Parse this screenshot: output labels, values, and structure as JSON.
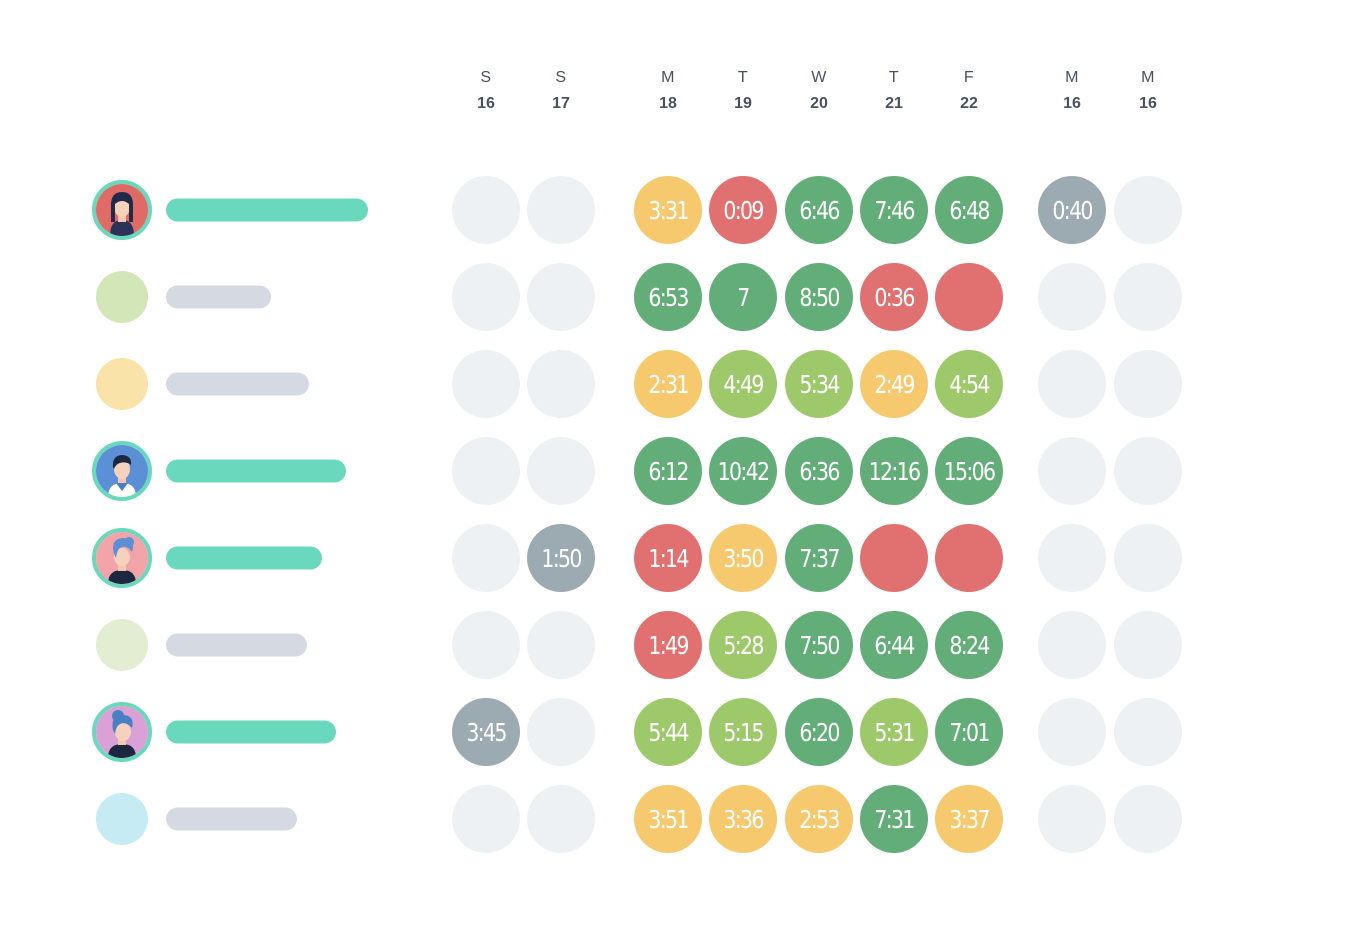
{
  "colors": {
    "empty": "#eef1f4",
    "grey": "#9caab2",
    "yellow": "#f6c96e",
    "red": "#e07170",
    "green": "#63ad78",
    "lightgreen": "#9ec96a",
    "accent_bar": "#6ad8bc",
    "muted_bar": "#d5dae2"
  },
  "days": [
    {
      "letter": "S",
      "num": "16"
    },
    {
      "letter": "S",
      "num": "17"
    },
    {
      "letter": "M",
      "num": "18"
    },
    {
      "letter": "T",
      "num": "19"
    },
    {
      "letter": "W",
      "num": "20"
    },
    {
      "letter": "T",
      "num": "21"
    },
    {
      "letter": "F",
      "num": "22"
    },
    {
      "letter": "M",
      "num": "16"
    },
    {
      "letter": "M",
      "num": "16"
    }
  ],
  "rows": [
    {
      "avatar": "avatar-woman-red-icon",
      "avatar_type": "photo",
      "avatar_color": "#e06a66",
      "bar_type": "accent",
      "bar_fill": 1.0,
      "cells": [
        {
          "v": "",
          "c": "empty"
        },
        {
          "v": "",
          "c": "empty"
        },
        {
          "v": "3:31",
          "c": "yellow"
        },
        {
          "v": "0:09",
          "c": "red"
        },
        {
          "v": "6:46",
          "c": "green"
        },
        {
          "v": "7:46",
          "c": "green"
        },
        {
          "v": "6:48",
          "c": "green"
        },
        {
          "v": "0:40",
          "c": "grey"
        },
        {
          "v": "",
          "c": "empty"
        }
      ]
    },
    {
      "avatar": "placeholder-avatar-icon",
      "avatar_type": "plain",
      "avatar_color": "#d2e6b8",
      "bar_type": "muted",
      "bar_fill": 0.52,
      "cells": [
        {
          "v": "",
          "c": "empty"
        },
        {
          "v": "",
          "c": "empty"
        },
        {
          "v": "6:53",
          "c": "green"
        },
        {
          "v": "7",
          "c": "green"
        },
        {
          "v": "8:50",
          "c": "green"
        },
        {
          "v": "0:36",
          "c": "red"
        },
        {
          "v": "",
          "c": "red"
        },
        {
          "v": "",
          "c": "empty"
        },
        {
          "v": "",
          "c": "empty"
        }
      ]
    },
    {
      "avatar": "placeholder-avatar-icon",
      "avatar_type": "plain",
      "avatar_color": "#fae3a8",
      "bar_type": "muted",
      "bar_fill": 0.71,
      "cells": [
        {
          "v": "",
          "c": "empty"
        },
        {
          "v": "",
          "c": "empty"
        },
        {
          "v": "2:31",
          "c": "yellow"
        },
        {
          "v": "4:49",
          "c": "lightgreen"
        },
        {
          "v": "5:34",
          "c": "lightgreen"
        },
        {
          "v": "2:49",
          "c": "yellow"
        },
        {
          "v": "4:54",
          "c": "lightgreen"
        },
        {
          "v": "",
          "c": "empty"
        },
        {
          "v": "",
          "c": "empty"
        }
      ]
    },
    {
      "avatar": "avatar-man-blue-icon",
      "avatar_type": "photo",
      "avatar_color": "#5b8fd6",
      "bar_type": "accent",
      "bar_fill": 0.89,
      "cells": [
        {
          "v": "",
          "c": "empty"
        },
        {
          "v": "",
          "c": "empty"
        },
        {
          "v": "6:12",
          "c": "green"
        },
        {
          "v": "10:42",
          "c": "green"
        },
        {
          "v": "6:36",
          "c": "green"
        },
        {
          "v": "12:16",
          "c": "green"
        },
        {
          "v": "15:06",
          "c": "green"
        },
        {
          "v": "",
          "c": "empty"
        },
        {
          "v": "",
          "c": "empty"
        }
      ]
    },
    {
      "avatar": "avatar-woman-pink-icon",
      "avatar_type": "photo",
      "avatar_color": "#f2a4a8",
      "bar_type": "accent",
      "bar_fill": 0.77,
      "cells": [
        {
          "v": "",
          "c": "empty"
        },
        {
          "v": "1:50",
          "c": "grey"
        },
        {
          "v": "1:14",
          "c": "red"
        },
        {
          "v": "3:50",
          "c": "yellow"
        },
        {
          "v": "7:37",
          "c": "green"
        },
        {
          "v": "",
          "c": "red"
        },
        {
          "v": "",
          "c": "red"
        },
        {
          "v": "",
          "c": "empty"
        },
        {
          "v": "",
          "c": "empty"
        }
      ]
    },
    {
      "avatar": "placeholder-avatar-icon",
      "avatar_type": "plain",
      "avatar_color": "#e2edd2",
      "bar_type": "muted",
      "bar_fill": 0.7,
      "cells": [
        {
          "v": "",
          "c": "empty"
        },
        {
          "v": "",
          "c": "empty"
        },
        {
          "v": "1:49",
          "c": "red"
        },
        {
          "v": "5:28",
          "c": "lightgreen"
        },
        {
          "v": "7:50",
          "c": "green"
        },
        {
          "v": "6:44",
          "c": "green"
        },
        {
          "v": "8:24",
          "c": "green"
        },
        {
          "v": "",
          "c": "empty"
        },
        {
          "v": "",
          "c": "empty"
        }
      ]
    },
    {
      "avatar": "avatar-woman-purple-icon",
      "avatar_type": "photo",
      "avatar_color": "#d9a1d6",
      "bar_type": "accent",
      "bar_fill": 0.84,
      "cells": [
        {
          "v": "3:45",
          "c": "grey"
        },
        {
          "v": "",
          "c": "empty"
        },
        {
          "v": "5:44",
          "c": "lightgreen"
        },
        {
          "v": "5:15",
          "c": "lightgreen"
        },
        {
          "v": "6:20",
          "c": "green"
        },
        {
          "v": "5:31",
          "c": "lightgreen"
        },
        {
          "v": "7:01",
          "c": "green"
        },
        {
          "v": "",
          "c": "empty"
        },
        {
          "v": "",
          "c": "empty"
        }
      ]
    },
    {
      "avatar": "placeholder-avatar-icon",
      "avatar_type": "plain",
      "avatar_color": "#c7ebf3",
      "bar_type": "muted",
      "bar_fill": 0.65,
      "cells": [
        {
          "v": "",
          "c": "empty"
        },
        {
          "v": "",
          "c": "empty"
        },
        {
          "v": "3:51",
          "c": "yellow"
        },
        {
          "v": "3:36",
          "c": "yellow"
        },
        {
          "v": "2:53",
          "c": "yellow"
        },
        {
          "v": "7:31",
          "c": "green"
        },
        {
          "v": "3:37",
          "c": "yellow"
        },
        {
          "v": "",
          "c": "empty"
        },
        {
          "v": "",
          "c": "empty"
        }
      ]
    }
  ]
}
